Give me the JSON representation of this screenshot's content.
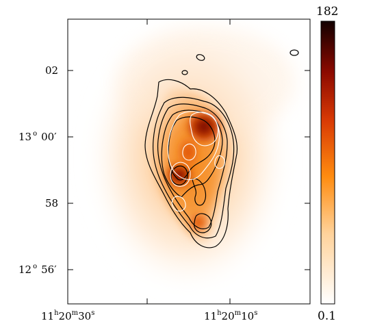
{
  "chart_data": {
    "type": "heatmap",
    "title": "",
    "xlabel": "",
    "ylabel": "",
    "colormap": "hot-orange",
    "colorbar": {
      "max_label": "182",
      "min_label": "0.1",
      "max": 182,
      "min": 0.1
    },
    "x_ticks": [
      {
        "h": "11",
        "m": "20",
        "s": "30",
        "label": "11h20m30s",
        "value": "11:20:30"
      },
      {
        "h": "11",
        "m": "20",
        "s": "10",
        "label": "11h20m10s",
        "value": "11:20:10"
      }
    ],
    "y_ticks": [
      {
        "label": "02",
        "value_arcmin": 2
      },
      {
        "deg": "13",
        "min": "00",
        "label": "13° 00′",
        "value_arcmin": 0
      },
      {
        "label": "58",
        "value_arcmin": -2
      },
      {
        "deg": "12",
        "min": "56",
        "label": "12° 56′",
        "value_arcmin": -4
      }
    ],
    "contours_black": 6,
    "contours_white": 4,
    "peak_intensity": 182
  }
}
